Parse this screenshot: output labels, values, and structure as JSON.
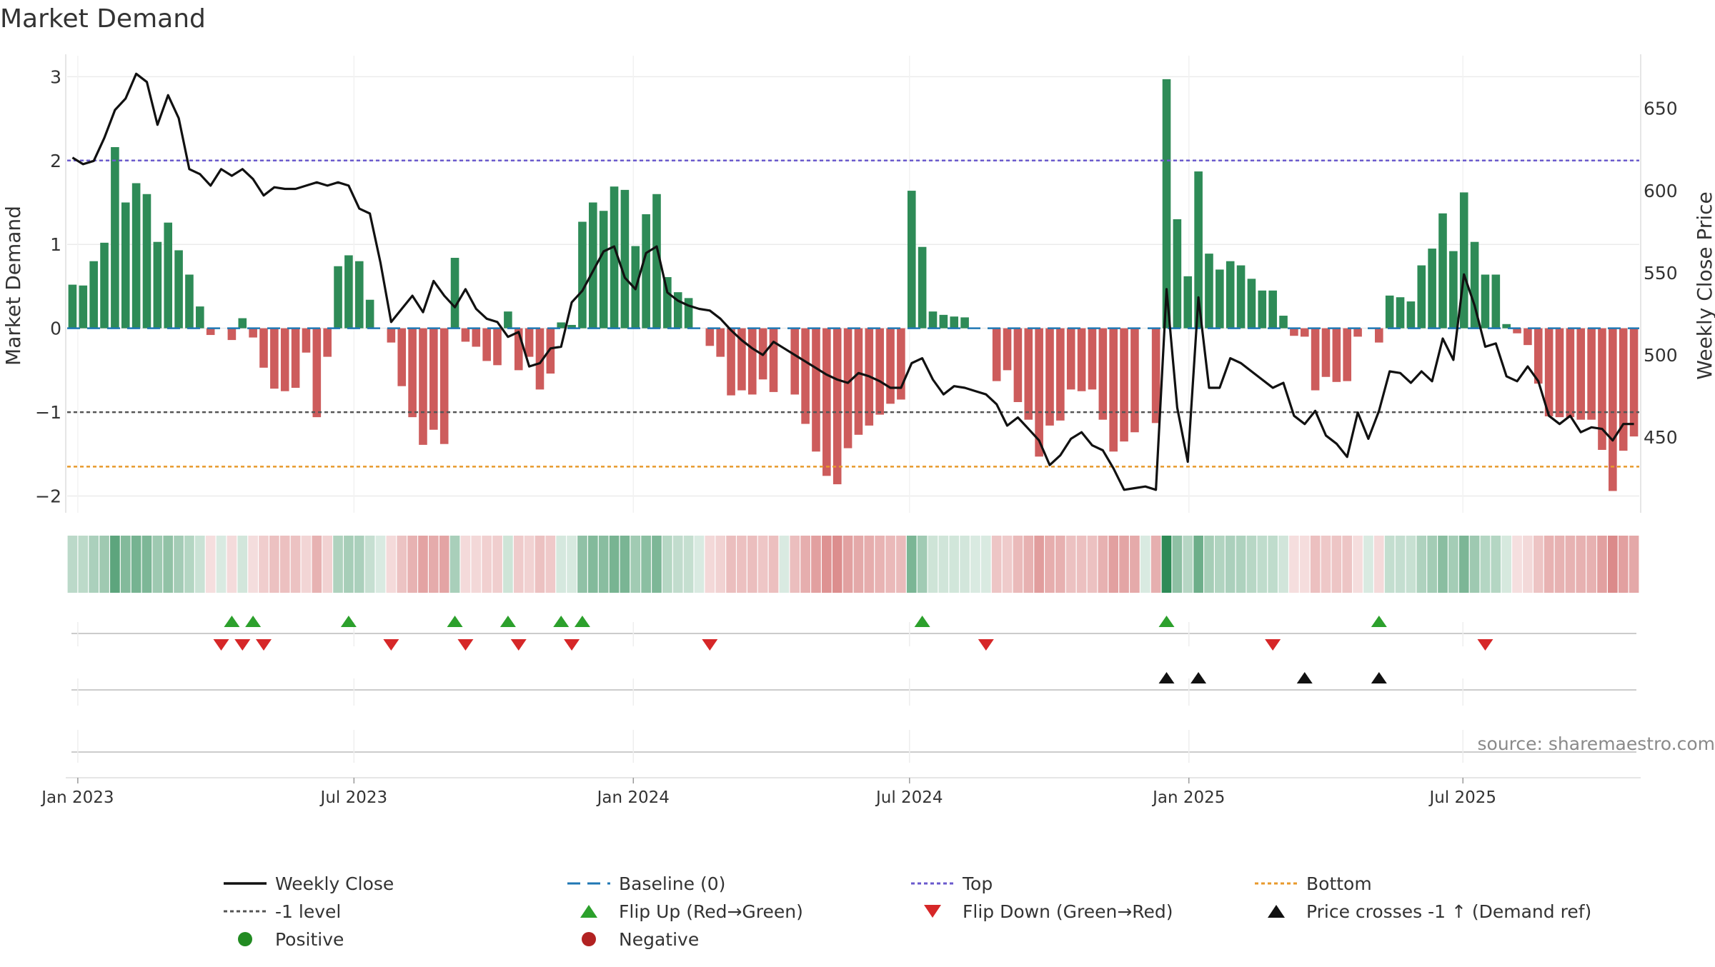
{
  "chart_data": {
    "type": "bar",
    "title": "Market Demand",
    "ylabel": "Market Demand",
    "y2label": "Weekly Close Price",
    "ylim": [
      -2.2,
      3.25
    ],
    "y2lim": [
      404,
      682
    ],
    "yticks": [
      -2,
      -1,
      0,
      1,
      2,
      3
    ],
    "y2ticks": [
      450,
      500,
      550,
      600,
      650
    ],
    "xticks": [
      {
        "label": "Jan 2023",
        "week": 1
      },
      {
        "label": "Jul 2023",
        "week": 27
      },
      {
        "label": "Jan 2024",
        "week": 53.3
      },
      {
        "label": "Jul 2024",
        "week": 79.3
      },
      {
        "label": "Jan 2025",
        "week": 105.6
      },
      {
        "label": "Jul 2025",
        "week": 131.4
      }
    ],
    "levels": {
      "top": 2.0,
      "minus_one": -1.0,
      "bottom": -1.65,
      "baseline": 0
    },
    "colors": {
      "positive": "#2e8b57",
      "negative": "#cd5c5c",
      "close": "#111111",
      "top": "#6a5acd",
      "minus_one": "#555555",
      "bottom": "#e89a2c",
      "baseline": "#1f77b4",
      "flip_up": "#2ca02c",
      "flip_down": "#d62728",
      "cross": "#111111",
      "legend_positive": "#228b22",
      "legend_negative": "#b22222"
    },
    "demand": [
      0.52,
      0.51,
      0.8,
      1.02,
      2.16,
      1.5,
      1.73,
      1.6,
      1.03,
      1.26,
      0.93,
      0.64,
      0.26,
      -0.08,
      0.0,
      -0.14,
      0.12,
      -0.11,
      -0.47,
      -0.72,
      -0.75,
      -0.71,
      -0.29,
      -1.06,
      -0.34,
      0.74,
      0.87,
      0.8,
      0.34,
      0.0,
      -0.17,
      -0.69,
      -1.06,
      -1.39,
      -1.21,
      -1.38,
      0.84,
      -0.16,
      -0.22,
      -0.39,
      -0.44,
      0.2,
      -0.5,
      -0.34,
      -0.73,
      -0.54,
      0.07,
      0.04,
      1.27,
      1.5,
      1.4,
      1.69,
      1.65,
      0.98,
      1.36,
      1.6,
      0.61,
      0.43,
      0.36,
      0.0,
      -0.21,
      -0.34,
      -0.8,
      -0.74,
      -0.79,
      -0.61,
      -0.76,
      0.0,
      -0.79,
      -1.14,
      -1.47,
      -1.76,
      -1.86,
      -1.43,
      -1.27,
      -1.16,
      -1.03,
      -0.9,
      -0.85,
      1.64,
      0.97,
      0.2,
      0.16,
      0.14,
      0.13,
      0.0,
      0.0,
      -0.63,
      -0.5,
      -0.88,
      -1.09,
      -1.53,
      -1.16,
      -1.1,
      -0.73,
      -0.75,
      -0.73,
      -1.09,
      -1.47,
      -1.35,
      -1.24,
      0.0,
      -1.13,
      2.97,
      1.3,
      0.62,
      1.87,
      0.89,
      0.7,
      0.8,
      0.75,
      0.59,
      0.45,
      0.45,
      0.15,
      -0.09,
      -0.1,
      -0.74,
      -0.58,
      -0.64,
      -0.63,
      -0.1,
      0.0,
      -0.17,
      0.39,
      0.37,
      0.32,
      0.75,
      0.95,
      1.37,
      0.92,
      1.62,
      1.03,
      0.64,
      0.64,
      0.05,
      -0.06,
      -0.2,
      -0.66,
      -1.05,
      -1.06,
      -1.06,
      -1.09,
      -1.09,
      -1.45,
      -1.94,
      -1.46,
      -1.29
    ],
    "close": [
      620,
      616,
      618,
      632,
      649,
      656,
      671,
      666,
      640,
      658,
      644,
      613,
      610,
      603,
      613,
      609,
      613,
      607,
      597,
      602,
      601,
      601,
      603,
      605,
      603,
      605,
      603,
      589,
      586,
      556,
      520,
      528,
      536,
      526,
      545,
      536,
      529,
      540,
      528,
      522,
      520,
      511,
      514,
      493,
      495,
      504,
      505,
      532,
      539,
      551,
      563,
      566,
      547,
      540,
      562,
      566,
      538,
      533,
      530,
      528,
      527,
      522,
      515,
      509,
      504,
      500,
      508,
      504,
      500,
      496,
      492,
      488,
      485,
      483,
      489,
      487,
      484,
      480,
      480,
      495,
      498,
      485,
      476,
      481,
      480,
      478,
      476,
      470,
      457,
      462,
      455,
      448,
      433,
      439,
      449,
      453,
      445,
      442,
      431,
      418,
      419,
      420,
      418,
      540,
      468,
      435,
      535,
      480,
      480,
      498,
      495,
      490,
      485,
      480,
      483,
      463,
      458,
      466,
      451,
      446,
      438,
      465,
      449,
      466,
      490,
      489,
      483,
      490,
      484,
      510,
      497,
      549,
      530,
      505,
      507,
      487,
      484,
      493,
      484,
      463,
      458,
      463,
      453,
      456,
      455,
      448,
      458,
      458
    ],
    "flip_up": [
      15,
      17,
      26,
      36,
      41,
      46,
      48,
      80,
      103,
      123
    ],
    "flip_down": [
      14,
      16,
      18,
      30,
      37,
      42,
      47,
      60,
      86,
      113,
      133
    ],
    "cross_up": [
      103,
      106,
      116,
      123
    ],
    "legend": [
      {
        "label": "Weekly Close",
        "kind": "line",
        "color": "close"
      },
      {
        "label": "Baseline (0)",
        "kind": "dashed",
        "color": "baseline"
      },
      {
        "label": "Top",
        "kind": "dotted",
        "color": "top"
      },
      {
        "label": "Bottom",
        "kind": "dotted",
        "color": "bottom"
      },
      {
        "label": "-1 level",
        "kind": "dotted",
        "color": "minus_one"
      },
      {
        "label": "Flip Up (Red→Green)",
        "kind": "tri-up",
        "color": "flip_up"
      },
      {
        "label": "Flip Down (Green→Red)",
        "kind": "tri-down",
        "color": "flip_down"
      },
      {
        "label": "Price crosses -1 ↑ (Demand ref)",
        "kind": "tri-up",
        "color": "cross"
      },
      {
        "label": "Positive",
        "kind": "dot",
        "color": "legend_positive"
      },
      {
        "label": "Negative",
        "kind": "dot",
        "color": "legend_negative"
      }
    ],
    "source": "source: sharemaestro.com"
  }
}
